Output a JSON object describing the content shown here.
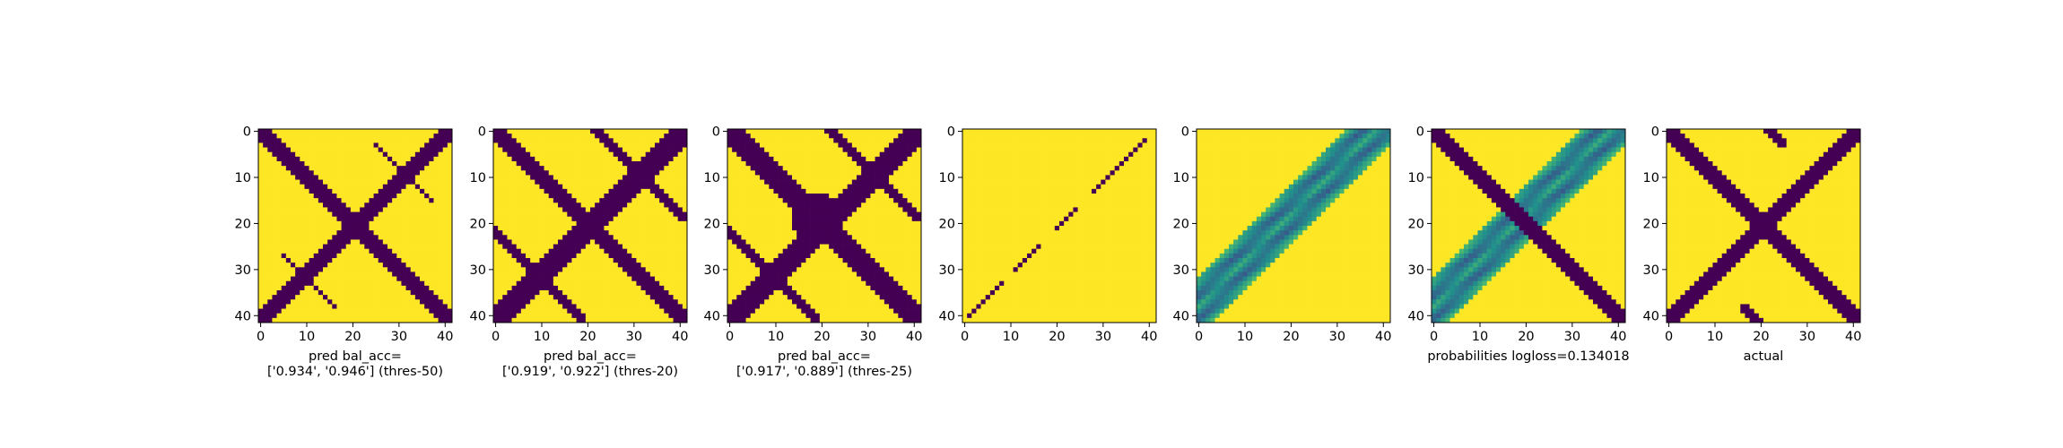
{
  "colors": {
    "dark": "#440154",
    "bright": "#fde725",
    "mid_dark": "#3b528b",
    "mid": "#21918c",
    "mid_light": "#5ec962",
    "light": "#b5de2b"
  },
  "chart_data": [
    {
      "type": "heatmap",
      "grid_size": 42,
      "xticks": [
        0,
        10,
        20,
        30,
        40
      ],
      "yticks": [
        0,
        10,
        20,
        30,
        40
      ],
      "xlabel_lines": [
        "pred bal_acc=",
        "['0.934', '0.946'] (thres-50)"
      ],
      "values": {
        "main_diagonal_halfwidth": 2.6,
        "anti_diagonal_halfwidth": 2.6,
        "side_bands": [
          {
            "offset": -22,
            "from": 16,
            "to": 27,
            "halfwidth": 0.8
          },
          {
            "offset": 22,
            "from": 14,
            "to": 26,
            "halfwidth": 0.8
          }
        ]
      }
    },
    {
      "type": "heatmap",
      "grid_size": 42,
      "xticks": [
        0,
        10,
        20,
        30,
        40
      ],
      "yticks": [
        0,
        10,
        20,
        30,
        40
      ],
      "xlabel_lines": [
        "pred bal_acc=",
        "['0.919', '0.922'] (thres-20)"
      ],
      "values": {
        "main_diagonal_halfwidth": 2.6,
        "anti_diagonal_halfwidth": 3.0,
        "side_bands": [
          {
            "offset": -22,
            "from": 10,
            "to": 30,
            "halfwidth": 1.0
          },
          {
            "offset": 22,
            "from": 10,
            "to": 30,
            "halfwidth": 1.0
          }
        ]
      }
    },
    {
      "type": "heatmap",
      "grid_size": 42,
      "xticks": [
        0,
        10,
        20,
        30,
        40
      ],
      "yticks": [
        0,
        10,
        20,
        30,
        40
      ],
      "xlabel_lines": [
        "pred bal_acc=",
        "['0.917', '0.889'] (thres-25)"
      ],
      "values": {
        "main_diagonal_halfwidth": 3.0,
        "anti_diagonal_halfwidth": 3.2,
        "blob_center": [
          19,
          19
        ],
        "blob_radius": 5.5,
        "side_bands": [
          {
            "offset": -22,
            "from": 5,
            "to": 30,
            "halfwidth": 1.8
          },
          {
            "offset": 22,
            "from": 5,
            "to": 30,
            "halfwidth": 1.8
          }
        ]
      }
    },
    {
      "type": "heatmap",
      "grid_size": 42,
      "xticks": [
        0,
        10,
        20,
        30,
        40
      ],
      "yticks": [
        0,
        10,
        20,
        30,
        40
      ],
      "xlabel_lines": [],
      "values": {
        "anti_diagonal_dashed": true
      }
    },
    {
      "type": "heatmap",
      "grid_size": 42,
      "xticks": [
        0,
        10,
        20,
        30,
        40
      ],
      "yticks": [
        0,
        10,
        20,
        30,
        40
      ],
      "xlabel_lines": [],
      "values": {
        "continuous": true,
        "band_center_offset": -3,
        "band_halfwidth": 6
      }
    },
    {
      "type": "heatmap",
      "grid_size": 42,
      "xticks": [
        0,
        10,
        20,
        30,
        40
      ],
      "yticks": [
        0,
        10,
        20,
        30,
        40
      ],
      "xlabel_lines": [
        "probabilities logloss=0.134018"
      ],
      "values": {
        "continuous": true,
        "main_diagonal_halfwidth": 2.2,
        "band_center_offset": -3,
        "band_halfwidth": 6
      }
    },
    {
      "type": "heatmap",
      "grid_size": 42,
      "xticks": [
        0,
        10,
        20,
        30,
        40
      ],
      "yticks": [
        0,
        10,
        20,
        30,
        40
      ],
      "xlabel_lines": [
        "actual"
      ],
      "values": {
        "main_diagonal_halfwidth": 2.6,
        "anti_diagonal_halfwidth": 2.4,
        "side_bands": [
          {
            "offset": -22,
            "from": 27,
            "to": 33,
            "halfwidth": 1.2
          },
          {
            "offset": 22,
            "from": 8,
            "to": 14,
            "halfwidth": 1.2
          }
        ]
      }
    }
  ]
}
